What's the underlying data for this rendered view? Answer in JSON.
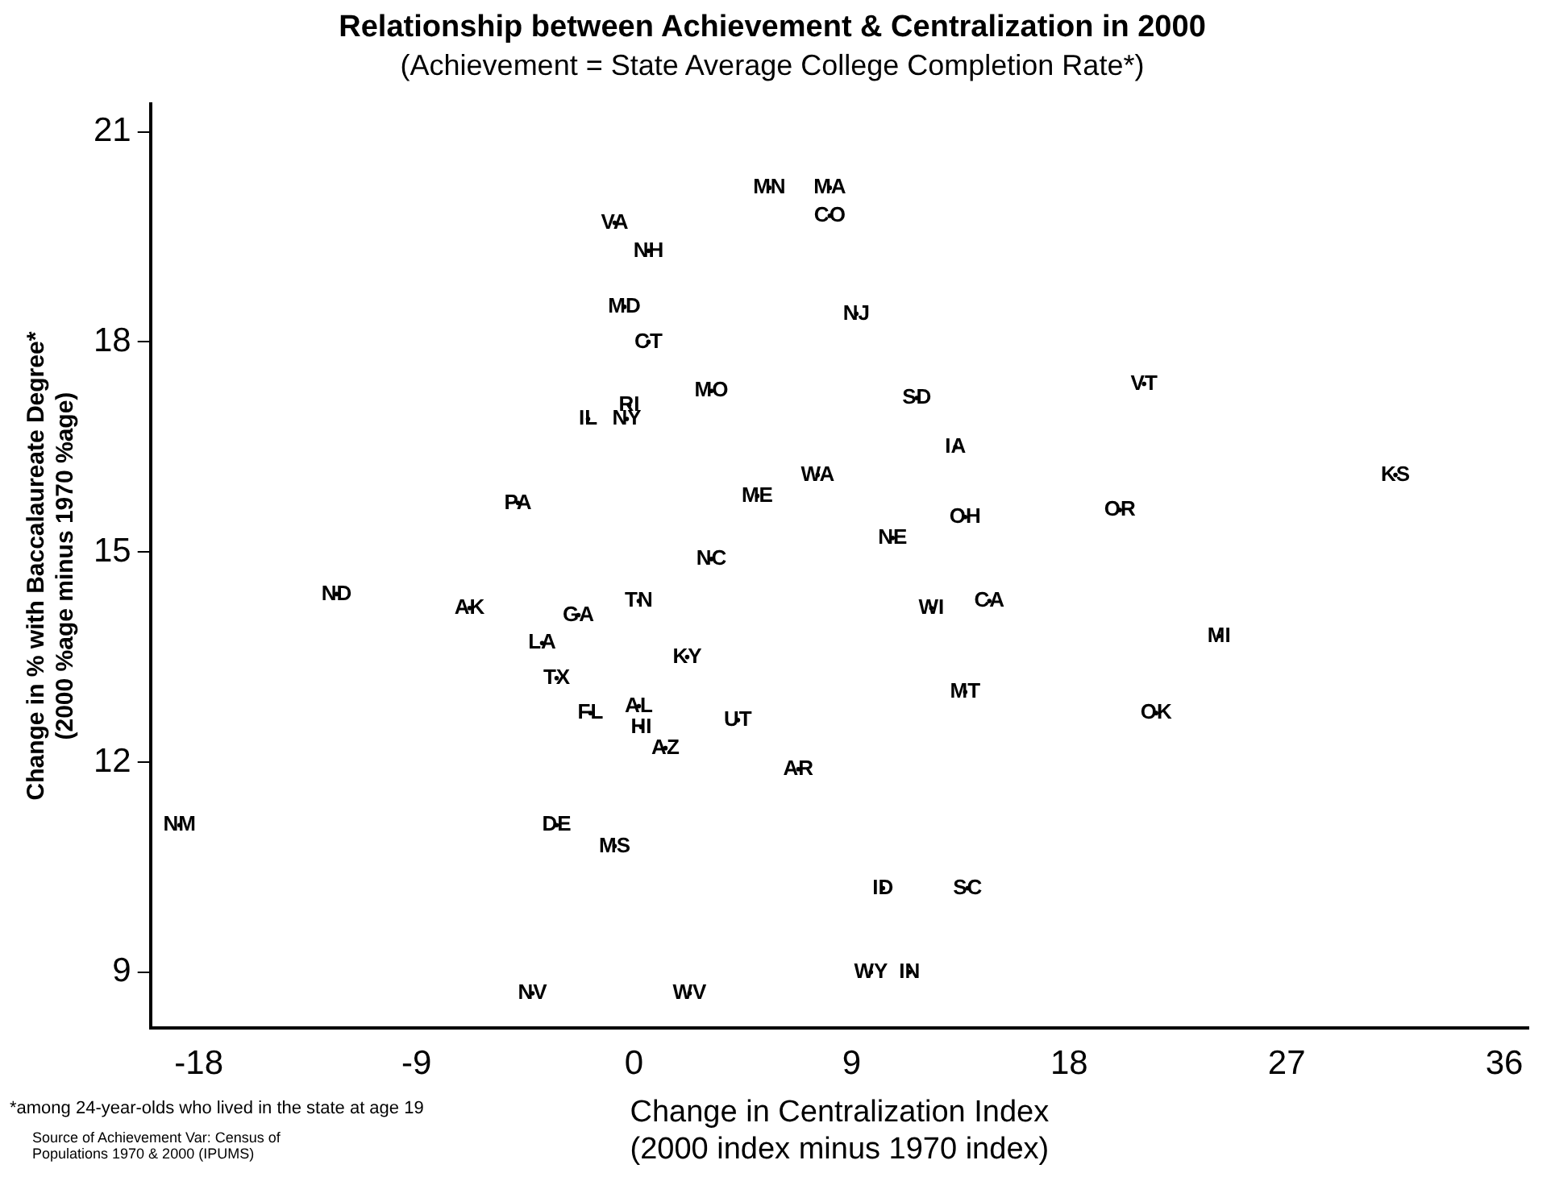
{
  "chart_data": {
    "type": "scatter",
    "title": "Relationship between Achievement & Centralization in 2000",
    "subtitle": "(Achievement = State Average College Completion Rate*)",
    "xlabel": "Change in Centralization Index\n(2000 index minus 1970 index)",
    "ylabel": "Change in % with Baccalaureate Degree*\n(2000 %age minus 1970 %age)",
    "annotations": [
      "*among 24-year-olds who lived in the state at age 19",
      "Source of Achievement Var: Census of Populations 1970 & 2000 (IPUMS)"
    ],
    "xlim": [
      -20,
      37
    ],
    "xticks": [
      -18,
      -9,
      0,
      9,
      18,
      27,
      36
    ],
    "ylim": [
      8.2,
      21.4
    ],
    "yticks": [
      9,
      12,
      15,
      18,
      21
    ],
    "grid": false,
    "legend": false,
    "series": [
      {
        "color": "#000000",
        "x": [
          5.6,
          8.1,
          8.1,
          -0.8,
          0.6,
          -0.4,
          0.6,
          3.2,
          -0.2,
          -1.9,
          -0.3,
          -4.8,
          5.1,
          7.6,
          3.2,
          -12.3,
          -6.8,
          -2.3,
          0.2,
          -3.8,
          -3.2,
          2.2,
          -1.8,
          0.2,
          0.3,
          1.3,
          4.3,
          6.8,
          -18.8,
          -3.2,
          -0.8,
          -4.2,
          2.3,
          9.2,
          11.7,
          21.1,
          13.3,
          31.5,
          13.7,
          20.1,
          10.7,
          12.3,
          14.7,
          24.2,
          13.7,
          21.6,
          10.3,
          13.8,
          9.8,
          11.4
        ],
        "values": [
          20.2,
          20.2,
          19.8,
          19.7,
          19.3,
          18.5,
          18.0,
          17.3,
          17.1,
          16.9,
          16.9,
          15.7,
          15.8,
          16.1,
          14.9,
          14.4,
          14.2,
          14.1,
          14.3,
          13.7,
          13.2,
          13.5,
          12.7,
          12.8,
          12.5,
          12.2,
          12.6,
          11.9,
          11.1,
          11.1,
          10.8,
          8.7,
          8.7,
          18.4,
          17.2,
          17.4,
          16.5,
          16.1,
          15.5,
          15.6,
          15.2,
          14.2,
          14.3,
          13.8,
          13.0,
          12.7,
          10.2,
          10.2,
          9.0,
          9.0
        ],
        "value_labels": [
          "MN",
          "MA",
          "CO",
          "VA",
          "NH",
          "MD",
          "CT",
          "MO",
          "RI",
          "IL",
          "NY",
          "PA",
          "ME",
          "WA",
          "NC",
          "ND",
          "AK",
          "GA",
          "TN",
          "LA",
          "TX",
          "KY",
          "FL",
          "AL",
          "HI",
          "AZ",
          "UT",
          "AR",
          "NM",
          "DE",
          "MS",
          "NV",
          "WV",
          "NJ",
          "SD",
          "VT",
          "IA",
          "KS",
          "OH",
          "OR",
          "NE",
          "WI",
          "CA",
          "MI",
          "MT",
          "OK",
          "ID",
          "SC",
          "WY",
          "IN"
        ]
      }
    ]
  }
}
